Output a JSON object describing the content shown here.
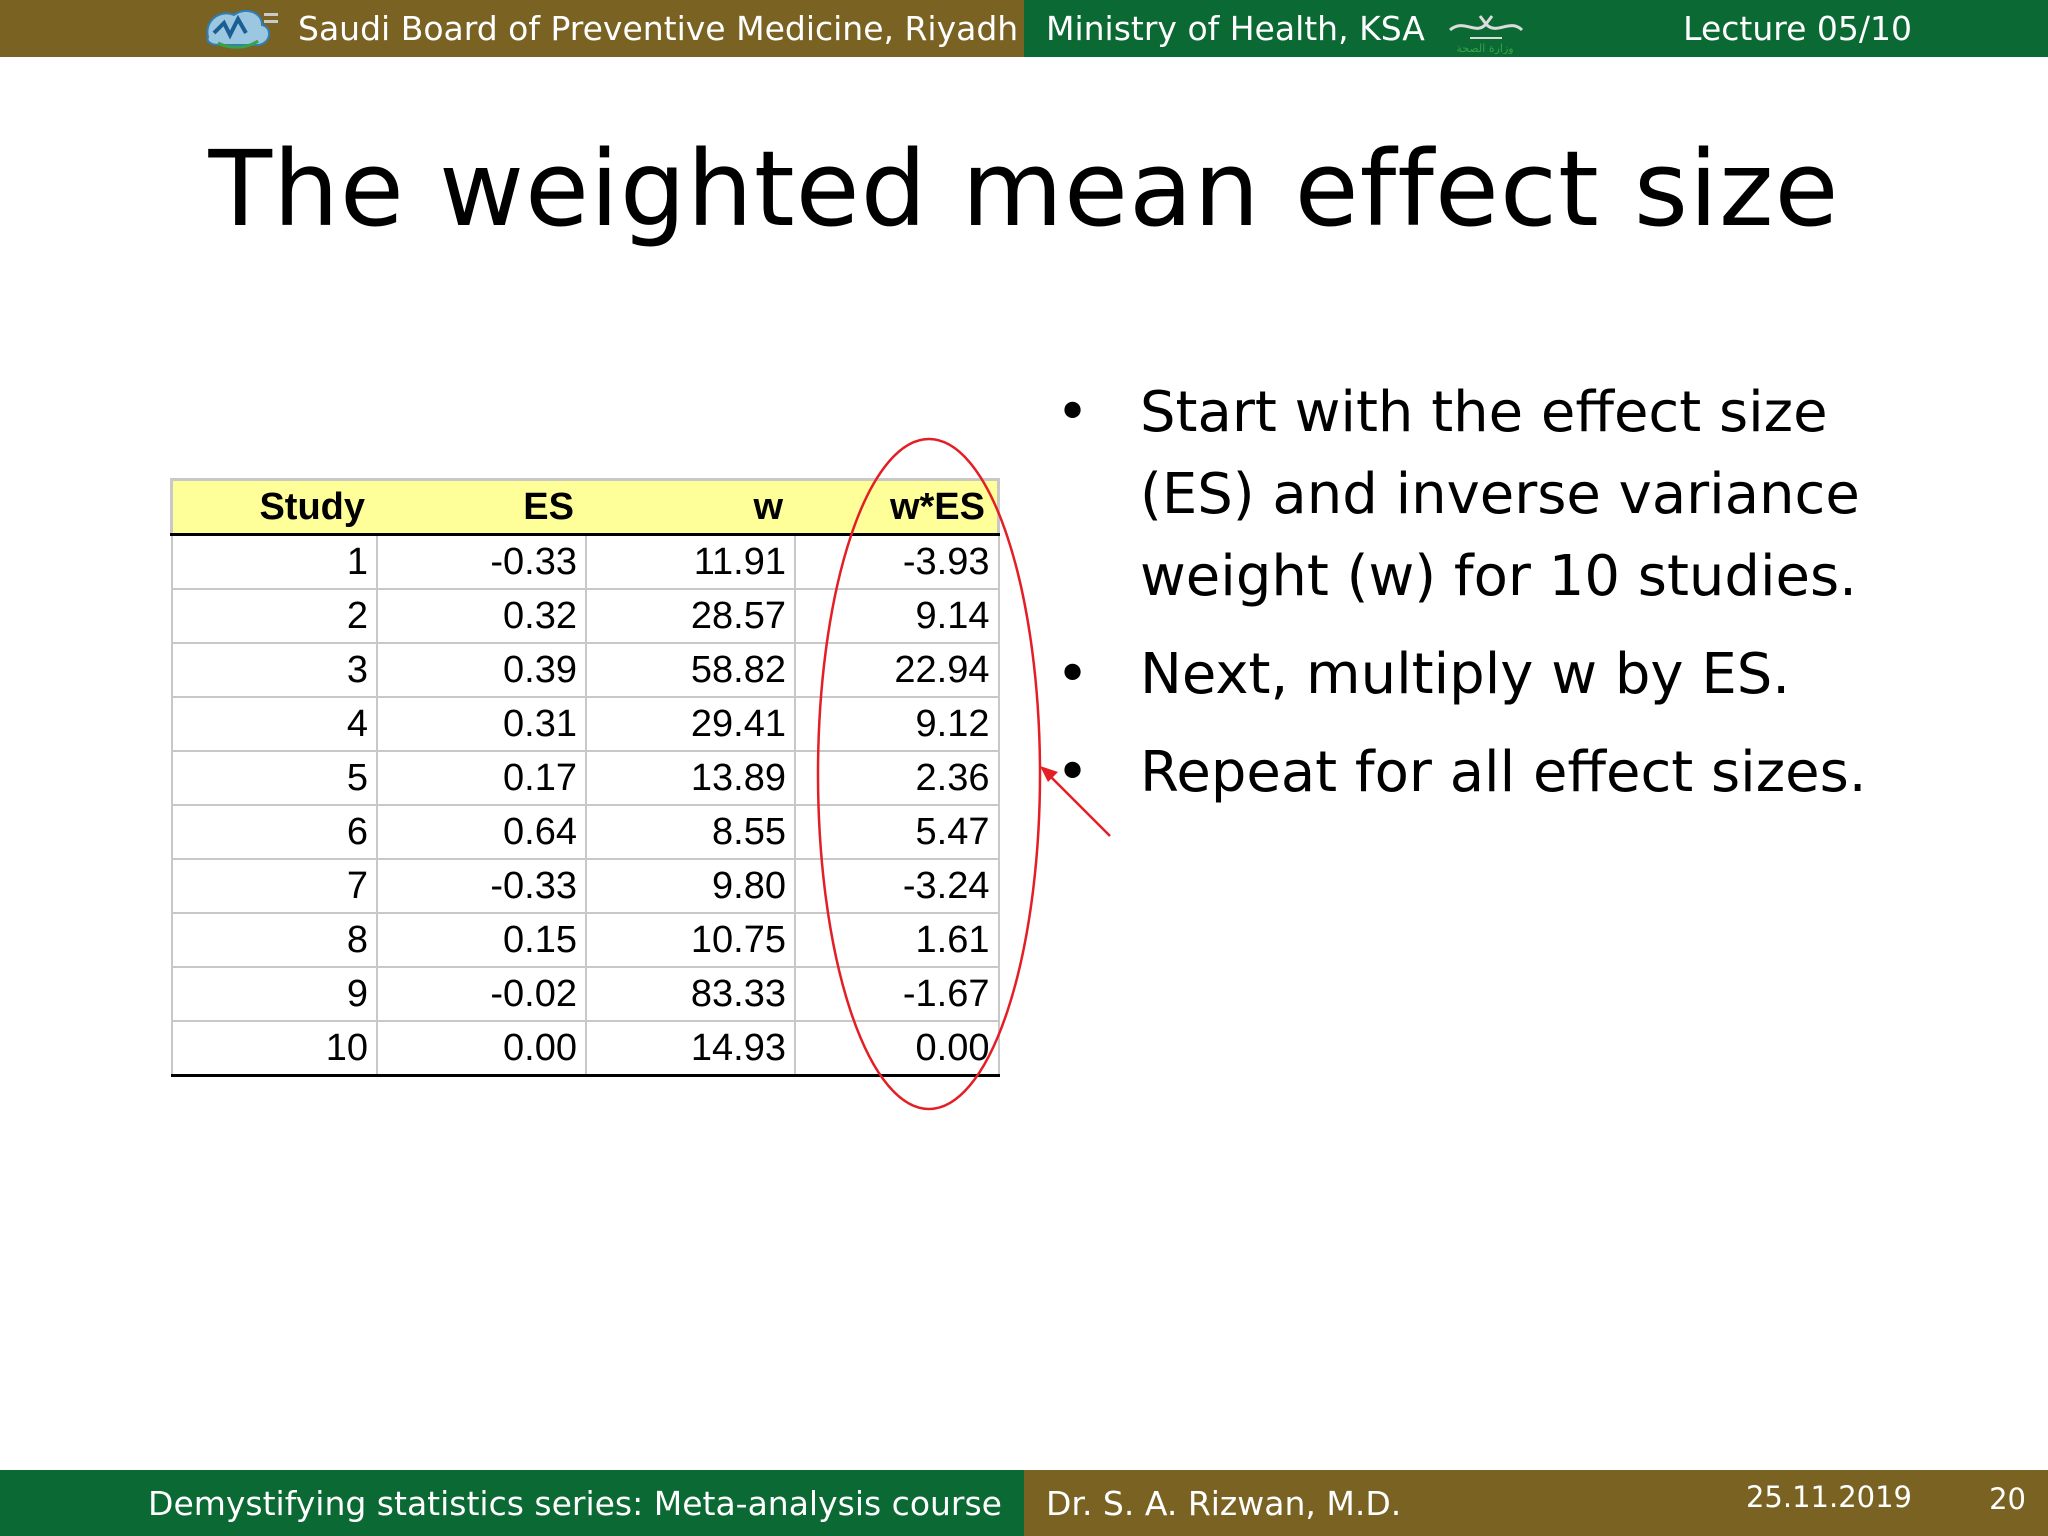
{
  "header": {
    "left_text": "Saudi Board of Preventive Medicine, Riyadh",
    "right_text": "Ministry of Health, KSA",
    "lecture": "Lecture 05/10"
  },
  "slide": {
    "title": "The weighted mean effect size",
    "table": {
      "headers": [
        "Study",
        "ES",
        "w",
        "w*ES"
      ],
      "rows": [
        [
          "1",
          "-0.33",
          "11.91",
          "-3.93"
        ],
        [
          "2",
          "0.32",
          "28.57",
          "9.14"
        ],
        [
          "3",
          "0.39",
          "58.82",
          "22.94"
        ],
        [
          "4",
          "0.31",
          "29.41",
          "9.12"
        ],
        [
          "5",
          "0.17",
          "13.89",
          "2.36"
        ],
        [
          "6",
          "0.64",
          "8.55",
          "5.47"
        ],
        [
          "7",
          "-0.33",
          "9.80",
          "-3.24"
        ],
        [
          "8",
          "0.15",
          "10.75",
          "1.61"
        ],
        [
          "9",
          "-0.02",
          "83.33",
          "-1.67"
        ],
        [
          "10",
          "0.00",
          "14.93",
          "0.00"
        ]
      ]
    },
    "bullet_symbol": "•",
    "bullets": [
      "Start with the effect size (ES) and inverse variance weight (w) for 10 studies.",
      "Next, multiply w by ES.",
      "Repeat for all effect sizes."
    ],
    "annotation_color": "#e31e24"
  },
  "footer": {
    "course": "Demystifying statistics series: Meta-analysis course",
    "author": "Dr. S. A. Rizwan, M.D.",
    "date": "25.11.2019",
    "page": "20"
  },
  "colors": {
    "brown": "#7a6223",
    "green": "#0b6934",
    "table_header": "#ffff99"
  }
}
